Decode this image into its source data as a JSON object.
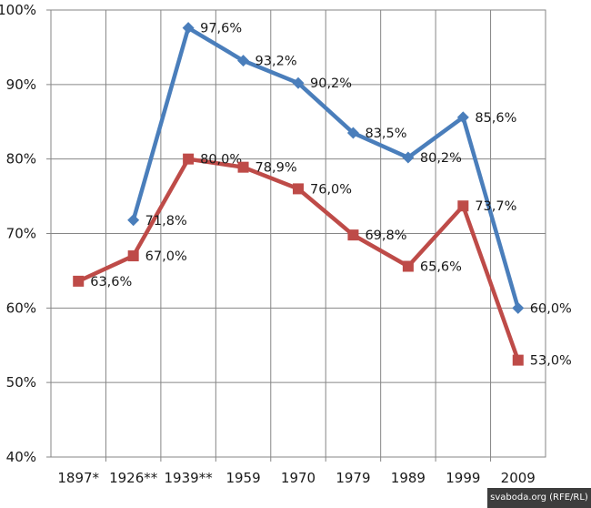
{
  "chart_data": {
    "type": "line",
    "categories": [
      "1897*",
      "1926**",
      "1939**",
      "1959",
      "1970",
      "1979",
      "1989",
      "1999",
      "2009"
    ],
    "series": [
      {
        "color": "#4a7ebb",
        "marker": "diamond",
        "values": [
          null,
          71.8,
          97.6,
          93.2,
          90.2,
          83.5,
          80.2,
          85.6,
          60.0
        ],
        "labels": [
          null,
          "71,8%",
          "97,6%",
          "93,2%",
          "90,2%",
          "83,5%",
          "80,2%",
          "85,6%",
          "60,0%"
        ]
      },
      {
        "color": "#be4b48",
        "marker": "square",
        "values": [
          63.6,
          67.0,
          80.0,
          78.9,
          76.0,
          69.8,
          65.6,
          73.7,
          53.0
        ],
        "labels": [
          "63,6%",
          "67,0%",
          "80,0%",
          "78,9%",
          "76,0%",
          "69,8%",
          "65,6%",
          "73,7%",
          "53,0%"
        ]
      }
    ],
    "ylim": [
      40,
      100
    ],
    "yticks": [
      "40%",
      "50%",
      "60%",
      "70%",
      "80%",
      "90%",
      "100%"
    ],
    "grid": true,
    "legend": "none"
  },
  "credit": "svaboda.org (RFE/RL)"
}
